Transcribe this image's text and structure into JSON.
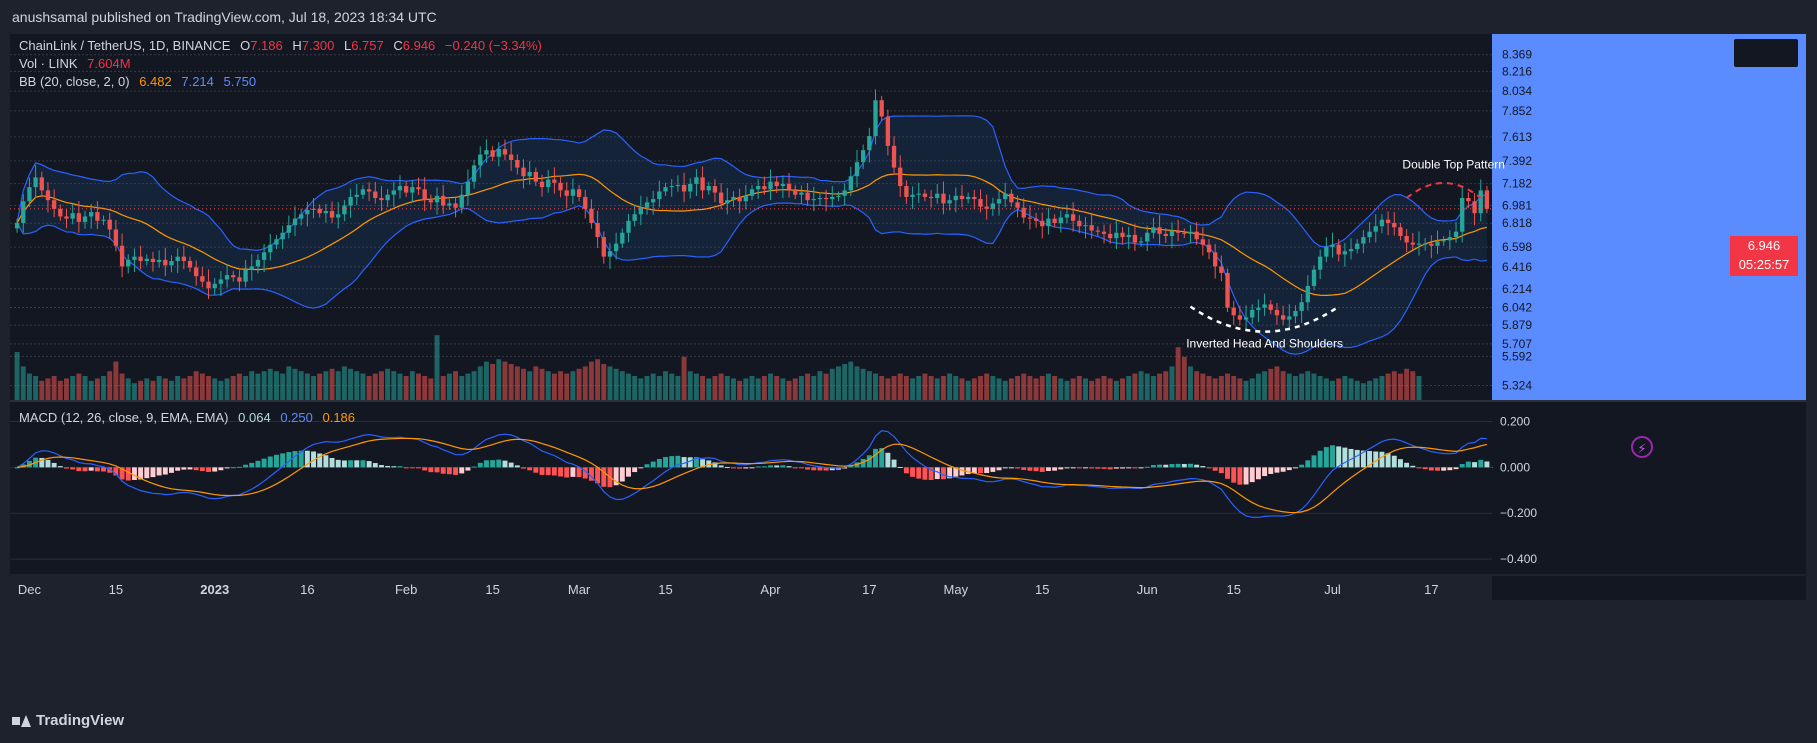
{
  "header": {
    "publisher_text": "anushsamal published on TradingView.com, Jul 18, 2023 18:34 UTC"
  },
  "legend": {
    "symbol": "ChainLink / TetherUS, 1D, BINANCE",
    "o_label": "O",
    "o_value": "7.186",
    "h_label": "H",
    "h_value": "7.300",
    "l_label": "L",
    "l_value": "6.757",
    "c_label": "C",
    "c_value": "6.946",
    "change": "−0.240 (−3.34%)",
    "vol_label": "Vol · LINK",
    "vol_value": "7.604M",
    "bb_label": "BB (20, close, 2, 0)",
    "bb_basis": "6.482",
    "bb_upper": "7.214",
    "bb_lower": "5.750",
    "macd_label": "MACD (12, 26, close, 9, EMA, EMA)",
    "macd_hist": "0.064",
    "macd_line": "0.250",
    "macd_signal": "0.186"
  },
  "current_price": {
    "price": "6.946",
    "countdown": "05:25:57"
  },
  "annotations": {
    "double_top": "Double Top Pattern",
    "inv_hs": "Inverted Head And Shoulders"
  },
  "footer": {
    "brand": "TradingView"
  },
  "colors": {
    "up": "#26a69a",
    "down": "#ef5350",
    "bb_band": "#2962ff",
    "bb_basis": "#ff9800",
    "macd_line": "#2962ff",
    "signal_line": "#ff9800",
    "hist_up_strong": "#26a69a",
    "hist_up_weak": "#b2dfdb",
    "hist_down_strong": "#ff5252",
    "hist_down_weak": "#ffcdd2",
    "bg": "#1e222d",
    "price_axis_bg": "#5b8cff"
  },
  "chart_data": {
    "type": "candlestick",
    "symbol": "LINK/USDT",
    "interval": "1D",
    "price_axis_ticks": [
      "8.369",
      "8.216",
      "8.034",
      "7.852",
      "7.613",
      "7.392",
      "7.182",
      "6.981",
      "6.818",
      "6.598",
      "6.416",
      "6.214",
      "6.042",
      "5.879",
      "5.707",
      "5.592",
      "5.324"
    ],
    "price_range": [
      5.19,
      8.56
    ],
    "macd_axis_ticks": [
      "0.200",
      "0.000",
      "−0.200",
      "−0.400"
    ],
    "macd_range": [
      -0.43,
      0.25
    ],
    "x_ticks": [
      {
        "label": "Dec",
        "bar": 2
      },
      {
        "label": "15",
        "bar": 16
      },
      {
        "label": "2023",
        "bar": 32,
        "bold": true
      },
      {
        "label": "16",
        "bar": 47
      },
      {
        "label": "Feb",
        "bar": 63
      },
      {
        "label": "15",
        "bar": 77
      },
      {
        "label": "Mar",
        "bar": 91
      },
      {
        "label": "15",
        "bar": 105
      },
      {
        "label": "Apr",
        "bar": 122
      },
      {
        "label": "17",
        "bar": 138
      },
      {
        "label": "May",
        "bar": 152
      },
      {
        "label": "15",
        "bar": 166
      },
      {
        "label": "Jun",
        "bar": 183
      },
      {
        "label": "15",
        "bar": 197
      },
      {
        "label": "Jul",
        "bar": 213
      },
      {
        "label": "17",
        "bar": 229
      }
    ],
    "close": [
      6.82,
      7.02,
      7.15,
      7.24,
      7.12,
      7.03,
      6.95,
      6.88,
      6.86,
      6.91,
      6.83,
      6.88,
      6.92,
      6.84,
      6.85,
      6.76,
      6.61,
      6.42,
      6.48,
      6.51,
      6.47,
      6.49,
      6.46,
      6.48,
      6.43,
      6.47,
      6.51,
      6.47,
      6.41,
      6.33,
      6.28,
      6.22,
      6.26,
      6.3,
      6.34,
      6.32,
      6.28,
      6.39,
      6.42,
      6.48,
      6.55,
      6.62,
      6.67,
      6.73,
      6.8,
      6.86,
      6.9,
      6.94,
      6.95,
      6.91,
      6.93,
      6.87,
      6.9,
      6.98,
      7.06,
      7.08,
      7.13,
      7.11,
      7.05,
      7.03,
      7.08,
      7.12,
      7.16,
      7.1,
      7.15,
      7.13,
      7.03,
      7.01,
      7.07,
      6.98,
      7.0,
      6.96,
      7.08,
      7.2,
      7.35,
      7.45,
      7.49,
      7.43,
      7.5,
      7.45,
      7.4,
      7.33,
      7.25,
      7.29,
      7.2,
      7.15,
      7.22,
      7.19,
      7.12,
      7.07,
      7.13,
      7.06,
      6.95,
      6.82,
      6.69,
      6.51,
      6.56,
      6.63,
      6.73,
      6.84,
      6.9,
      6.96,
      7.01,
      7.04,
      7.11,
      7.15,
      7.16,
      7.17,
      7.11,
      7.18,
      7.24,
      7.12,
      7.16,
      7.1,
      7.0,
      7.03,
      7.06,
      7.02,
      7.07,
      7.13,
      7.16,
      7.13,
      7.2,
      7.16,
      7.18,
      7.13,
      7.08,
      7.1,
      7.03,
      7.04,
      7.05,
      7.04,
      7.06,
      7.07,
      7.12,
      7.25,
      7.38,
      7.49,
      7.62,
      7.95,
      7.8,
      7.53,
      7.33,
      7.16,
      7.06,
      7.08,
      7.09,
      7.06,
      7.05,
      7.09,
      7.0,
      7.03,
      7.07,
      7.04,
      7.06,
      7.04,
      6.97,
      6.95,
      7.0,
      7.04,
      7.09,
      7.01,
      6.96,
      6.87,
      6.86,
      6.84,
      6.79,
      6.86,
      6.82,
      6.87,
      6.9,
      6.84,
      6.79,
      6.8,
      6.75,
      6.74,
      6.72,
      6.68,
      6.73,
      6.69,
      6.71,
      6.64,
      6.65,
      6.73,
      6.78,
      6.72,
      6.7,
      6.75,
      6.73,
      6.72,
      6.74,
      6.67,
      6.62,
      6.55,
      6.42,
      6.36,
      6.04,
      5.97,
      5.93,
      5.95,
      6.02,
      6.04,
      6.07,
      6.02,
      5.97,
      5.93,
      5.96,
      6.01,
      6.09,
      6.24,
      6.39,
      6.51,
      6.6,
      6.62,
      6.53,
      6.56,
      6.58,
      6.63,
      6.69,
      6.74,
      6.79,
      6.85,
      6.82,
      6.78,
      6.7,
      6.64,
      6.62,
      6.63,
      6.63,
      6.61,
      6.65,
      6.66,
      6.69,
      6.74,
      7.05,
      7.02,
      6.91,
      7.12,
      6.95
    ],
    "volume_relative": [
      1.0,
      0.7,
      0.55,
      0.5,
      0.4,
      0.45,
      0.5,
      0.4,
      0.45,
      0.5,
      0.55,
      0.5,
      0.4,
      0.45,
      0.5,
      0.6,
      0.8,
      0.55,
      0.45,
      0.35,
      0.4,
      0.45,
      0.4,
      0.5,
      0.45,
      0.4,
      0.5,
      0.45,
      0.5,
      0.6,
      0.55,
      0.5,
      0.45,
      0.4,
      0.45,
      0.5,
      0.55,
      0.5,
      0.6,
      0.55,
      0.6,
      0.65,
      0.6,
      0.55,
      0.7,
      0.65,
      0.6,
      0.55,
      0.5,
      0.55,
      0.6,
      0.65,
      0.6,
      0.7,
      0.65,
      0.6,
      0.55,
      0.5,
      0.55,
      0.6,
      0.65,
      0.6,
      0.55,
      0.5,
      0.6,
      0.55,
      0.5,
      0.45,
      1.35,
      0.5,
      0.55,
      0.6,
      0.5,
      0.55,
      0.6,
      0.7,
      0.8,
      0.75,
      0.85,
      0.8,
      0.75,
      0.7,
      0.65,
      0.6,
      0.7,
      0.65,
      0.6,
      0.55,
      0.6,
      0.55,
      0.6,
      0.65,
      0.7,
      0.8,
      0.85,
      0.75,
      0.7,
      0.65,
      0.6,
      0.55,
      0.5,
      0.45,
      0.5,
      0.55,
      0.5,
      0.6,
      0.55,
      0.5,
      0.9,
      0.6,
      0.55,
      0.5,
      0.45,
      0.5,
      0.55,
      0.5,
      0.45,
      0.4,
      0.45,
      0.5,
      0.45,
      0.5,
      0.55,
      0.5,
      0.45,
      0.4,
      0.45,
      0.5,
      0.55,
      0.5,
      0.6,
      0.55,
      0.65,
      0.7,
      0.75,
      0.8,
      0.7,
      0.65,
      0.6,
      0.55,
      0.5,
      0.45,
      0.5,
      0.55,
      0.5,
      0.45,
      0.5,
      0.55,
      0.5,
      0.45,
      0.5,
      0.55,
      0.5,
      0.45,
      0.4,
      0.45,
      0.5,
      0.55,
      0.5,
      0.45,
      0.4,
      0.45,
      0.5,
      0.55,
      0.5,
      0.45,
      0.5,
      0.55,
      0.5,
      0.45,
      0.4,
      0.45,
      0.5,
      0.45,
      0.4,
      0.45,
      0.5,
      0.45,
      0.4,
      0.45,
      0.5,
      0.55,
      0.6,
      0.55,
      0.5,
      0.55,
      0.6,
      0.7,
      1.1,
      0.9,
      0.7,
      0.6,
      0.55,
      0.5,
      0.45,
      0.5,
      0.55,
      0.5,
      0.45,
      0.4,
      0.45,
      0.55,
      0.6,
      0.65,
      0.7,
      0.6,
      0.55,
      0.5,
      0.55,
      0.6,
      0.55,
      0.5,
      0.45,
      0.4,
      0.45,
      0.5,
      0.45,
      0.4,
      0.35,
      0.4,
      0.45,
      0.5,
      0.55,
      0.6,
      0.55,
      0.65,
      0.6,
      0.5
    ],
    "bb_period": 20,
    "bb_mult": 2,
    "macd_fast": 12,
    "macd_slow": 26,
    "macd_signal": 9
  }
}
